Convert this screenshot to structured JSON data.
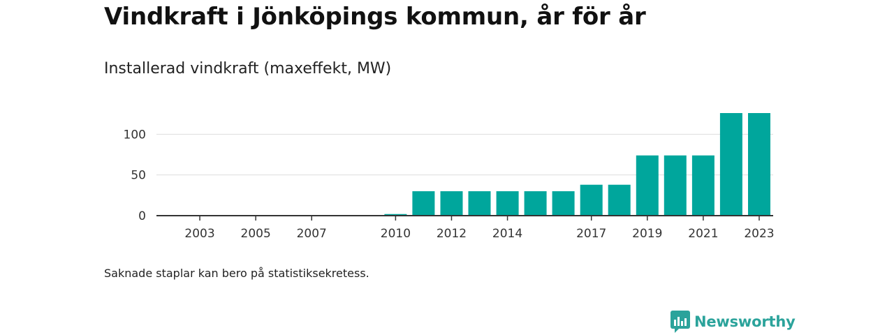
{
  "title": "Vindkraft i Jönköpings kommun, år för år",
  "subtitle": "Installerad vindkraft (maxeffekt, MW)",
  "note": "Saknade staplar kan bero på statistiksekretess.",
  "brand": {
    "name": "Newsworthy",
    "icon": "newsworthy-logo-icon",
    "color": "#2ba39b"
  },
  "chart_data": {
    "type": "bar",
    "title": "Vindkraft i Jönköpings kommun, år för år",
    "subtitle": "Installerad vindkraft (maxeffekt, MW)",
    "xlabel": "",
    "ylabel": "",
    "categories": [
      2002,
      2003,
      2004,
      2005,
      2006,
      2007,
      2008,
      2009,
      2010,
      2011,
      2012,
      2013,
      2014,
      2015,
      2016,
      2017,
      2018,
      2019,
      2020,
      2021,
      2022,
      2023
    ],
    "values": [
      0,
      0,
      0,
      0,
      0,
      0,
      0,
      0,
      2,
      30,
      30,
      30,
      30,
      30,
      30,
      38,
      38,
      74,
      74,
      74,
      126,
      126
    ],
    "x_tick_labels": [
      "2003",
      "2005",
      "2007",
      "2010",
      "2012",
      "2014",
      "2017",
      "2019",
      "2021",
      "2023"
    ],
    "y_ticks": [
      0,
      50,
      100
    ],
    "ylim": [
      0,
      126
    ],
    "grid": true,
    "legend": "none",
    "bar_color": "#00a69c"
  }
}
